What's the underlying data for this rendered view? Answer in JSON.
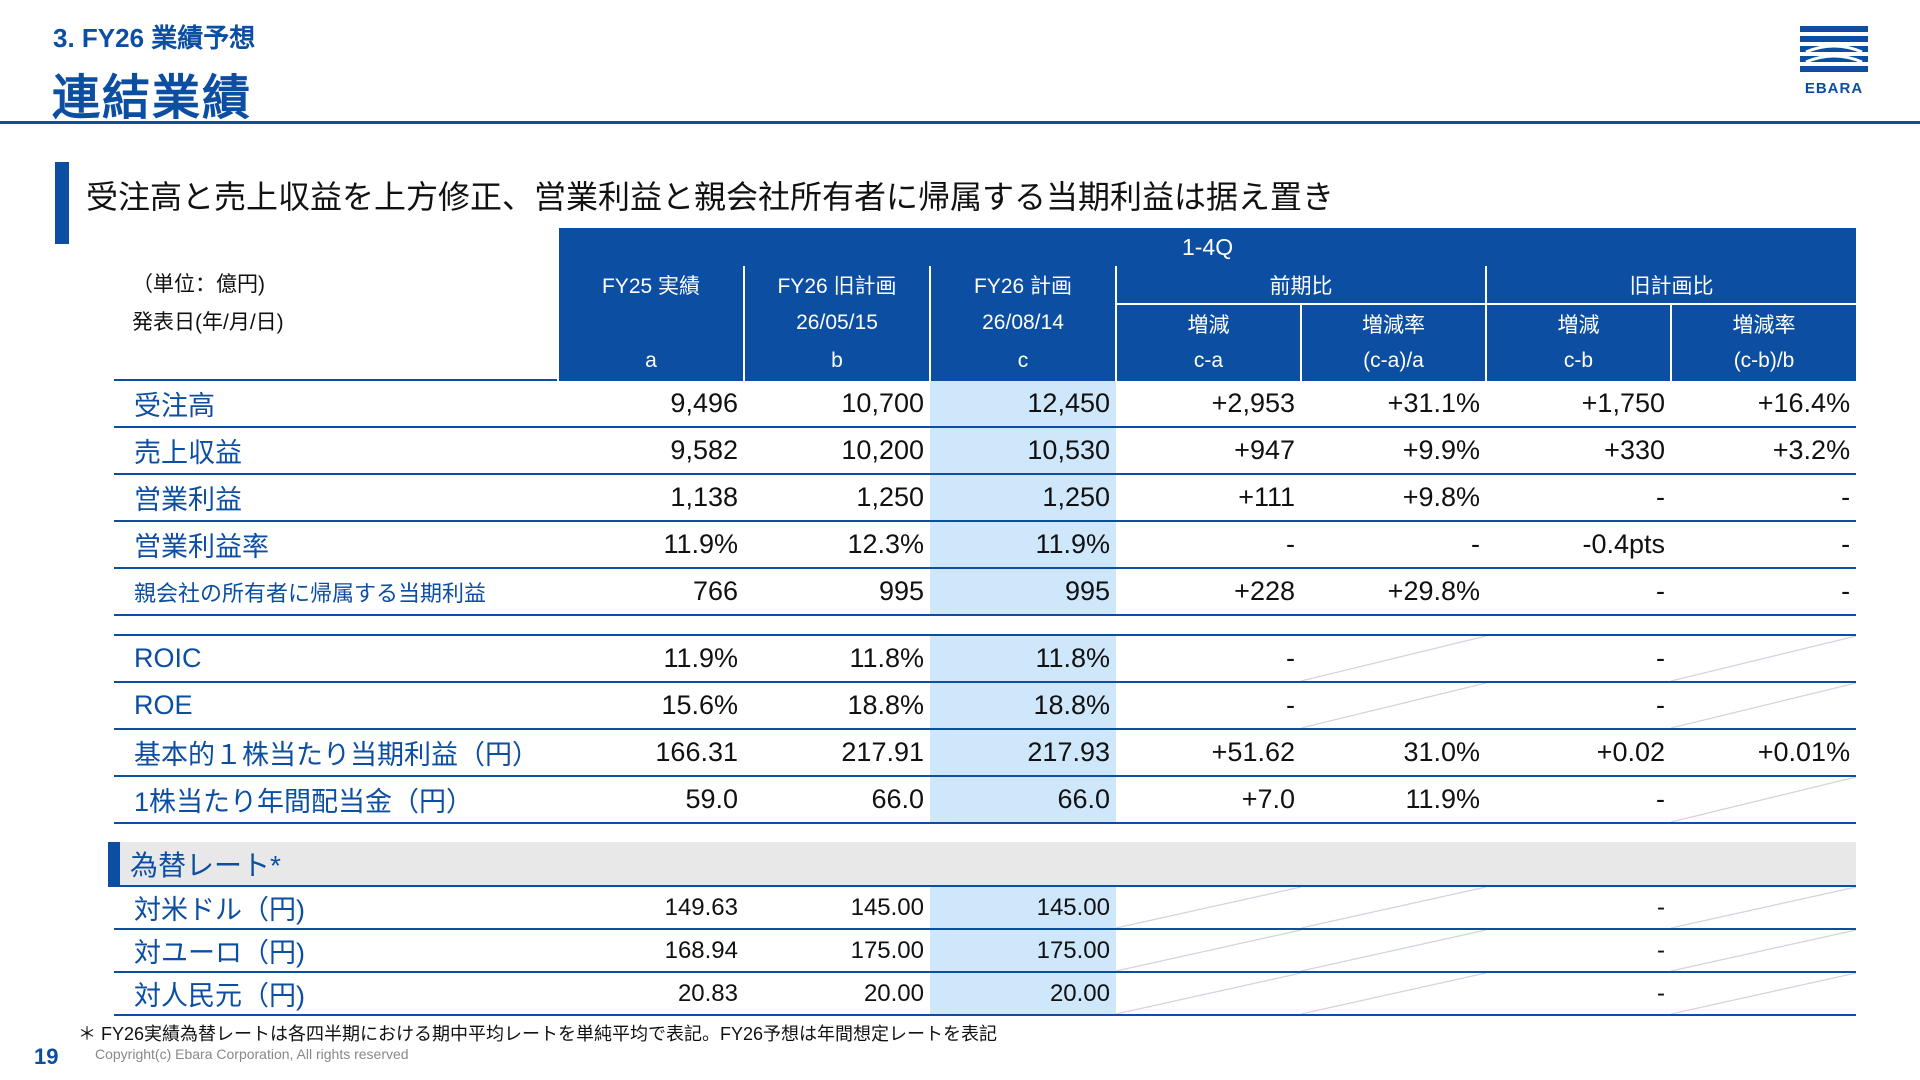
{
  "header": {
    "section_label": "3. FY26 業績予想",
    "page_title": "連結業績",
    "logo_text": "EBARA"
  },
  "headline": "受注高と売上収益を上方修正、営業利益と親会社所有者に帰属する当期利益は据え置き",
  "table": {
    "unit_label": "（単位：億円)",
    "date_label": "発表日(年/月/日)",
    "period_header": "1-4Q",
    "columns": {
      "fy25": {
        "name": "FY25 実績",
        "date": "",
        "code": "a"
      },
      "fy26_old": {
        "name": "FY26 旧計画",
        "date": "26/05/15",
        "code": "b"
      },
      "fy26": {
        "name": "FY26 計画",
        "date": "26/08/14",
        "code": "c"
      },
      "yoy_group": "前期比",
      "yoy_diff": {
        "name": "増減",
        "code": "c-a"
      },
      "yoy_rate": {
        "name": "増減率",
        "code": "(c-a)/a"
      },
      "vsplan_group": "旧計画比",
      "vsplan_diff": {
        "name": "増減",
        "code": "c-b"
      },
      "vsplan_rate": {
        "name": "増減率",
        "code": "(c-b)/b"
      }
    },
    "rows": [
      {
        "label": "受注高",
        "a": "9,496",
        "b": "10,700",
        "c": "12,450",
        "ca": "+2,953",
        "car": "+31.1%",
        "cb": "+1,750",
        "cbr": "+16.4%"
      },
      {
        "label": "売上収益",
        "a": "9,582",
        "b": "10,200",
        "c": "10,530",
        "ca": "+947",
        "car": "+9.9%",
        "cb": "+330",
        "cbr": "+3.2%"
      },
      {
        "label": "営業利益",
        "a": "1,138",
        "b": "1,250",
        "c": "1,250",
        "ca": "+111",
        "car": "+9.8%",
        "cb": "-",
        "cbr": "-"
      },
      {
        "label": "営業利益率",
        "a": "11.9%",
        "b": "12.3%",
        "c": "11.9%",
        "ca": "-",
        "car": "-",
        "cb": "-0.4pts",
        "cbr": "-"
      },
      {
        "label": "親会社の所有者に帰属する当期利益",
        "a": "766",
        "b": "995",
        "c": "995",
        "ca": "+228",
        "car": "+29.8%",
        "cb": "-",
        "cbr": "-"
      }
    ],
    "rows2": [
      {
        "label": "ROIC",
        "a": "11.9%",
        "b": "11.8%",
        "c": "11.8%",
        "ca": "-",
        "car": "",
        "cb": "-",
        "cbr": ""
      },
      {
        "label": "ROE",
        "a": "15.6%",
        "b": "18.8%",
        "c": "18.8%",
        "ca": "-",
        "car": "",
        "cb": "-",
        "cbr": ""
      },
      {
        "label": "基本的１株当たり当期利益（円）",
        "a": "166.31",
        "b": "217.91",
        "c": "217.93",
        "ca": "+51.62",
        "car": "31.0%",
        "cb": "+0.02",
        "cbr": "+0.01%"
      },
      {
        "label": "1株当たり年間配当金（円）",
        "a": "59.0",
        "b": "66.0",
        "c": "66.0",
        "ca": "+7.0",
        "car": "11.9%",
        "cb": "-",
        "cbr": ""
      }
    ],
    "fx_title": "為替レート*",
    "fx_rows": [
      {
        "label": "対米ドル（円)",
        "a": "149.63",
        "b": "145.00",
        "c": "145.00",
        "cb": "-"
      },
      {
        "label": "対ユーロ（円)",
        "a": "168.94",
        "b": "175.00",
        "c": "175.00",
        "cb": "-"
      },
      {
        "label": "対人民元（円)",
        "a": "20.83",
        "b": "20.00",
        "c": "20.00",
        "cb": "-"
      }
    ]
  },
  "footnote": "＊ FY26実績為替レートは各四半期における期中平均レートを単純平均で表記。FY26予想は年間想定レートを表記",
  "page_number": "19",
  "copyright": "Copyright(c) Ebara Corporation, All rights reserved",
  "colors": {
    "brand": "#0b4ea2",
    "highlight": "#cfe7fb",
    "fx_header_bg": "#e8e8e8"
  }
}
